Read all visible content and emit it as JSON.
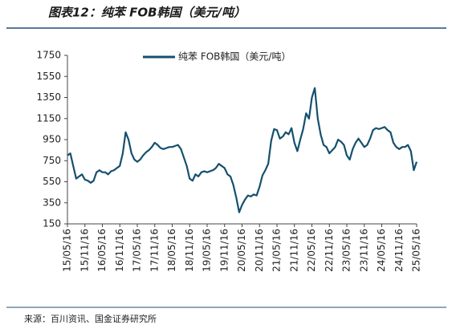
{
  "header": {
    "title": "图表12：纯苯 FOB韩国（美元/吨）"
  },
  "chart_data": {
    "type": "line",
    "x": [
      "15/05/16",
      "15/06/16",
      "15/07/16",
      "15/08/16",
      "15/09/16",
      "15/10/16",
      "15/11/16",
      "15/12/16",
      "16/01/16",
      "16/02/16",
      "16/03/16",
      "16/04/16",
      "16/05/16",
      "16/06/16",
      "16/07/16",
      "16/08/16",
      "16/09/16",
      "16/10/16",
      "16/11/16",
      "16/12/16",
      "17/01/16",
      "17/02/16",
      "17/03/16",
      "17/04/16",
      "17/05/16",
      "17/06/16",
      "17/07/16",
      "17/08/16",
      "17/09/16",
      "17/10/16",
      "17/11/16",
      "17/12/16",
      "18/01/16",
      "18/02/16",
      "18/03/16",
      "18/04/16",
      "18/05/16",
      "18/06/16",
      "18/07/16",
      "18/08/16",
      "18/09/16",
      "18/10/16",
      "18/11/16",
      "18/12/16",
      "19/01/16",
      "19/02/16",
      "19/03/16",
      "19/04/16",
      "19/05/16",
      "19/06/16",
      "19/07/16",
      "19/08/16",
      "19/09/16",
      "19/10/16",
      "19/11/16",
      "19/12/16",
      "20/01/16",
      "20/02/16",
      "20/03/16",
      "20/04/16",
      "20/05/16",
      "20/06/16",
      "20/07/16",
      "20/08/16",
      "20/09/16",
      "20/10/16",
      "20/11/16",
      "20/12/16",
      "21/01/16",
      "21/02/16",
      "21/03/16",
      "21/04/16",
      "21/05/16",
      "21/06/16",
      "21/07/16",
      "21/08/16",
      "21/09/16",
      "21/10/16",
      "21/11/16",
      "21/12/16",
      "22/01/16",
      "22/02/16",
      "22/03/16",
      "22/04/16",
      "22/05/16",
      "22/06/16",
      "22/07/16",
      "22/08/16",
      "22/09/16",
      "22/10/16",
      "22/11/16",
      "22/12/16",
      "23/01/16",
      "23/02/16",
      "23/03/16",
      "23/04/16",
      "23/05/16",
      "23/06/16",
      "23/07/16",
      "23/08/16",
      "23/09/16",
      "23/10/16",
      "23/11/16",
      "23/12/16",
      "24/01/16",
      "24/02/16",
      "24/03/16",
      "24/04/16",
      "24/05/16",
      "24/06/16",
      "24/07/16",
      "24/08/16",
      "24/09/16",
      "24/10/16",
      "24/11/16",
      "24/12/16",
      "25/01/16",
      "25/02/16",
      "25/03/16",
      "25/04/16",
      "25/05/16"
    ],
    "series": [
      {
        "name": "纯苯 FOB韩国（美元/吨）",
        "color": "#15506e",
        "values": [
          800,
          820,
          700,
          580,
          600,
          620,
          570,
          560,
          540,
          560,
          640,
          660,
          640,
          640,
          620,
          650,
          660,
          680,
          700,
          820,
          1020,
          950,
          820,
          760,
          740,
          760,
          800,
          830,
          850,
          880,
          920,
          900,
          870,
          860,
          870,
          880,
          880,
          890,
          900,
          860,
          780,
          700,
          580,
          560,
          620,
          600,
          640,
          650,
          640,
          650,
          660,
          680,
          720,
          700,
          680,
          620,
          600,
          520,
          400,
          260,
          330,
          380,
          420,
          410,
          430,
          420,
          500,
          610,
          660,
          720,
          940,
          1050,
          1040,
          960,
          980,
          1020,
          1000,
          1060,
          920,
          840,
          950,
          1050,
          1200,
          1150,
          1350,
          1440,
          1150,
          1000,
          900,
          880,
          820,
          850,
          880,
          950,
          930,
          900,
          800,
          760,
          860,
          920,
          960,
          920,
          880,
          900,
          960,
          1040,
          1060,
          1050,
          1060,
          1070,
          1040,
          1020,
          920,
          880,
          860,
          880,
          880,
          900,
          840,
          660,
          740
        ]
      }
    ],
    "xlim": [
      "15/05/16",
      "25/05/16"
    ],
    "xticks": [
      "15/05/16",
      "15/11/16",
      "16/05/16",
      "16/11/16",
      "17/05/16",
      "17/11/16",
      "18/05/16",
      "18/11/16",
      "19/05/16",
      "19/11/16",
      "20/05/16",
      "20/11/16",
      "21/05/16",
      "21/11/16",
      "22/05/16",
      "22/11/16",
      "23/05/16",
      "23/11/16",
      "24/05/16",
      "24/11/16",
      "25/05/16"
    ],
    "ylim": [
      150,
      1750
    ],
    "yticks": [
      150,
      350,
      550,
      750,
      950,
      1150,
      1350,
      1550,
      1750
    ]
  },
  "footer": {
    "source": "来源：百川资讯、国金证券研究所"
  }
}
